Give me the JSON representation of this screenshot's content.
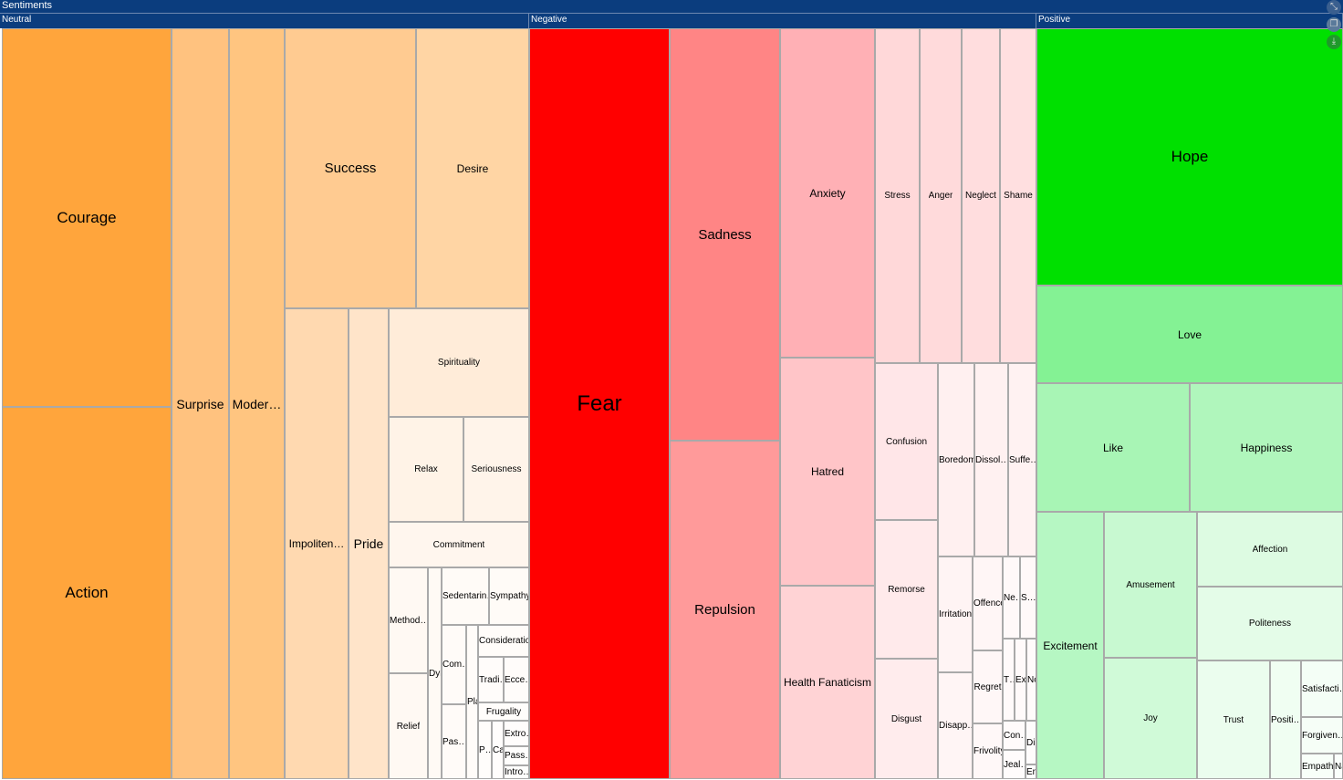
{
  "title": "Sentiments",
  "controls": [
    {
      "icon": "collapse-icon"
    },
    {
      "icon": "copy-icon"
    },
    {
      "icon": "download-icon"
    }
  ],
  "chart_data": {
    "type": "treemap",
    "title": "Sentiments",
    "groups": [
      {
        "name": "Neutral",
        "color": "#FFA53C",
        "children": [
          "Courage",
          "Action",
          "Surprise",
          "Moder…",
          "Success",
          "Desire",
          "Impoliten…",
          "Pride",
          "Spirituality",
          "Relax",
          "Seriousness",
          "Commitment",
          "Method…",
          "Relief",
          "Dyn",
          "Sedentarin…",
          "Sympathy",
          "Com…",
          "Pas…",
          "Pla",
          "Consideration",
          "Tradi…",
          "Ecce…",
          "Frugality",
          "P…",
          "Cal",
          "Extro…",
          "Pass…",
          "Intro…"
        ]
      },
      {
        "name": "Negative",
        "color": "#FF0000",
        "children": [
          "Fear",
          "Sadness",
          "Repulsion",
          "Anxiety",
          "Hatred",
          "Health Fanaticism",
          "Stress",
          "Anger",
          "Neglect",
          "Shame",
          "Confusion",
          "Remorse",
          "Disgust",
          "Boredom",
          "Dissol…",
          "Suffe…",
          "Irritation",
          "Disapp…",
          "Offence",
          "Regret",
          "Frivolity",
          "Ne…",
          "S…",
          "T…",
          "Exa",
          "No",
          "Con…",
          "Jeal…",
          "Dis",
          "Env"
        ]
      },
      {
        "name": "Positive",
        "color": "#00E000",
        "children": [
          "Hope",
          "Love",
          "Like",
          "Happiness",
          "Excitement",
          "Amusement",
          "Joy",
          "Affection",
          "Politeness",
          "Trust",
          "Positi…",
          "Satisfacti…",
          "Forgiven…",
          "Empathy",
          "Na Lo"
        ]
      }
    ],
    "tile_colors": {
      "Neutral": [
        "#FFA53C",
        "#FFA53C",
        "#FFC27F",
        "#FFC580",
        "#FFCB91",
        "#FFD5A4",
        "#FFD9B0",
        "#FFE4C9",
        "#FFECD9",
        "#FFF3E7",
        "#FFF4EA",
        "#FFF6EE",
        "#FFF9F3",
        "#FFF9F3",
        "#FFFAF5",
        "#FFFBF7",
        "#FFFBF7",
        "#FFFBF8",
        "#FFFBF8",
        "#FFFCF9",
        "#FFFCF9",
        "#FFFCFA",
        "#FFFCFA",
        "#FFFDFB",
        "#FFFDFB",
        "#FFFDFC",
        "#FFFDFC",
        "#FFFEFD",
        "#FFFEFD"
      ],
      "Negative": [
        "#FF0000",
        "#FF8585",
        "#FF9A9A",
        "#FFB0B5",
        "#FFC5C8",
        "#FFD3D5",
        "#FFD8D9",
        "#FFDADB",
        "#FFDDDE",
        "#FFDFE0",
        "#FFE6E8",
        "#FFEAEB",
        "#FFECED",
        "#FFF0F0",
        "#FFF1F1",
        "#FFF2F2",
        "#FFF4F4",
        "#FFF5F5",
        "#FFF6F6",
        "#FFF7F7",
        "#FFF8F8",
        "#FFF9F9",
        "#FFF9F9",
        "#FFFAFA",
        "#FFFAFA",
        "#FFFBFB",
        "#FFFBFB",
        "#FFFCFC",
        "#FFFCFC",
        "#FFFDFD"
      ],
      "Positive": [
        "#00E000",
        "#84F294",
        "#A8F5B5",
        "#B0F6BC",
        "#B6F7C3",
        "#C8F9D1",
        "#D0FAD8",
        "#DDFBE2",
        "#E4FCE8",
        "#EBFDEE",
        "#F0FEF2",
        "#F4FEF6",
        "#F6FEF7",
        "#F8FFF9",
        "#FAFFFB"
      ]
    }
  }
}
